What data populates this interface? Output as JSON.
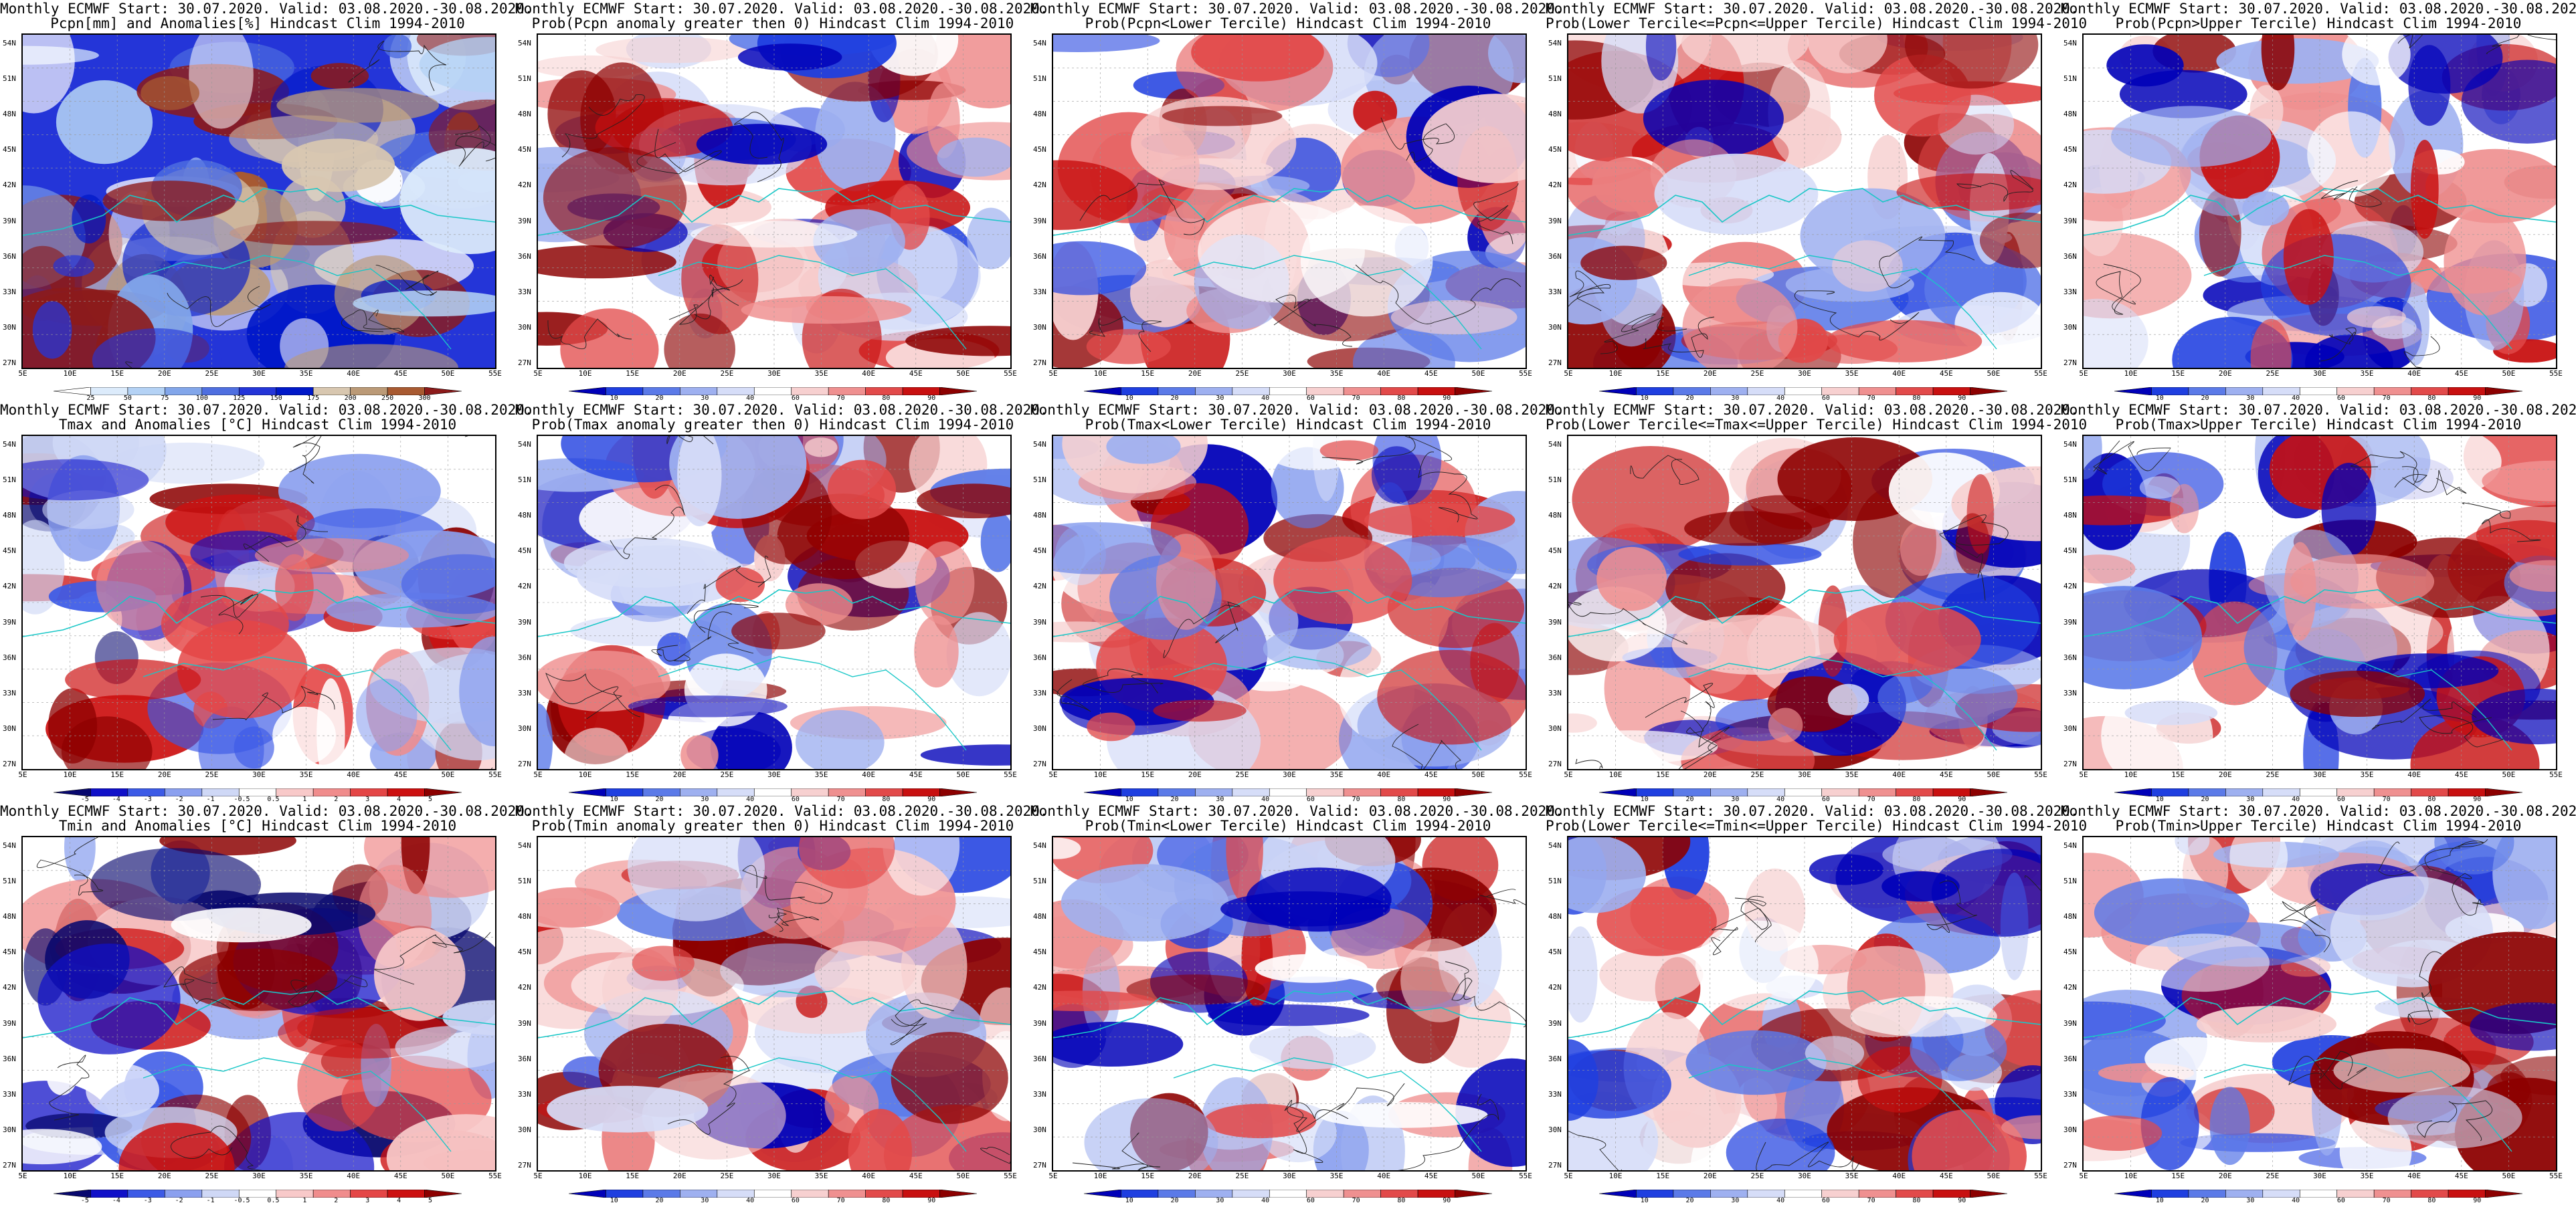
{
  "colors": {
    "pcpn_scale": [
      "#ffffff",
      "#dcebfb",
      "#b4d2f5",
      "#82a6ea",
      "#4f6fe0",
      "#2435d8",
      "#0018c8",
      "#d8c7b0",
      "#bb9a77",
      "#a85a31",
      "#8c1a1a"
    ],
    "anom_scale": [
      "#08086e",
      "#1010c8",
      "#3c5ae6",
      "#8ba0ef",
      "#cfd8f6",
      "#ffffff",
      "#f8c9c9",
      "#f08c8c",
      "#e44646",
      "#cc1010",
      "#8c0000"
    ],
    "prob_scale": [
      "#0000b8",
      "#1f3fe0",
      "#5b7ae8",
      "#9eb0f0",
      "#d6ddf8",
      "#ffffff",
      "#f7d0d0",
      "#ef9090",
      "#e24a4a",
      "#c81010",
      "#8c0000"
    ],
    "contour": "#202020",
    "coast": "#19c7c7"
  },
  "lat_labels": [
    "54N",
    "51N",
    "48N",
    "45N",
    "42N",
    "39N",
    "36N",
    "33N",
    "30N",
    "27N"
  ],
  "lon_labels": [
    "5E",
    "10E",
    "15E",
    "20E",
    "25E",
    "30E",
    "35E",
    "40E",
    "45E",
    "50E",
    "55E"
  ],
  "panels": [
    {
      "id": "r1c1",
      "title1": "Monthly ECMWF Start: 30.07.2020. Valid: 03.08.2020.-30.08.2020.",
      "title2": "Pcpn[mm] and Anomalies[%] Hindcast Clim 1994-2010",
      "palette": "pcpn_scale",
      "cbar_labels": [
        "25",
        "50",
        "75",
        "100",
        "125",
        "150",
        "175",
        "200",
        "250",
        "300"
      ]
    },
    {
      "id": "r1c2",
      "title1": "Monthly ECMWF Start: 30.07.2020. Valid: 03.08.2020.-30.08.2020.",
      "title2": "Prob(Pcpn anomaly greater then 0) Hindcast Clim 1994-2010",
      "palette": "prob_scale",
      "cbar_labels": [
        "10",
        "20",
        "30",
        "40",
        "60",
        "70",
        "80",
        "90"
      ]
    },
    {
      "id": "r1c3",
      "title1": "Monthly ECMWF Start: 30.07.2020. Valid: 03.08.2020.-30.08.2020.",
      "title2": "Prob(Pcpn<Lower Tercile) Hindcast Clim 1994-2010",
      "palette": "prob_scale",
      "cbar_labels": [
        "10",
        "20",
        "30",
        "40",
        "60",
        "70",
        "80",
        "90"
      ]
    },
    {
      "id": "r1c4",
      "title1": "Monthly ECMWF Start: 30.07.2020. Valid: 03.08.2020.-30.08.2020.",
      "title2": "Prob(Lower Tercile<=Pcpn<=Upper Tercile) Hindcast Clim 1994-2010",
      "palette": "prob_scale",
      "cbar_labels": [
        "10",
        "20",
        "30",
        "40",
        "60",
        "70",
        "80",
        "90"
      ]
    },
    {
      "id": "r1c5",
      "title1": "Monthly ECMWF Start: 30.07.2020. Valid: 03.08.2020.-30.08.2020.",
      "title2": "Prob(Pcpn>Upper Tercile) Hindcast Clim 1994-2010",
      "palette": "prob_scale",
      "cbar_labels": [
        "10",
        "20",
        "30",
        "40",
        "60",
        "70",
        "80",
        "90"
      ]
    },
    {
      "id": "r2c1",
      "title1": "Monthly ECMWF Start: 30.07.2020. Valid: 03.08.2020.-30.08.2020.",
      "title2": "Tmax and Anomalies [°C] Hindcast Clim 1994-2010",
      "palette": "anom_scale",
      "cbar_labels": [
        "-5",
        "-4",
        "-3",
        "-2",
        "-1",
        "-0.5",
        "0.5",
        "1",
        "2",
        "3",
        "4",
        "5"
      ]
    },
    {
      "id": "r2c2",
      "title1": "Monthly ECMWF Start: 30.07.2020. Valid: 03.08.2020.-30.08.2020.",
      "title2": "Prob(Tmax anomaly greater then 0) Hindcast Clim 1994-2010",
      "palette": "prob_scale",
      "cbar_labels": [
        "10",
        "20",
        "30",
        "40",
        "60",
        "70",
        "80",
        "90"
      ]
    },
    {
      "id": "r2c3",
      "title1": "Monthly ECMWF Start: 30.07.2020. Valid: 03.08.2020.-30.08.2020.",
      "title2": "Prob(Tmax<Lower Tercile) Hindcast Clim 1994-2010",
      "palette": "prob_scale",
      "cbar_labels": [
        "10",
        "20",
        "30",
        "40",
        "60",
        "70",
        "80",
        "90"
      ]
    },
    {
      "id": "r2c4",
      "title1": "Monthly ECMWF Start: 30.07.2020. Valid: 03.08.2020.-30.08.2020.",
      "title2": "Prob(Lower Tercile<=Tmax<=Upper Tercile) Hindcast Clim 1994-2010",
      "palette": "prob_scale",
      "cbar_labels": [
        "10",
        "20",
        "30",
        "40",
        "60",
        "70",
        "80",
        "90"
      ]
    },
    {
      "id": "r2c5",
      "title1": "Monthly ECMWF Start: 30.07.2020. Valid: 03.08.2020.-30.08.2020.",
      "title2": "Prob(Tmax>Upper Tercile) Hindcast Clim 1994-2010",
      "palette": "prob_scale",
      "cbar_labels": [
        "10",
        "20",
        "30",
        "40",
        "60",
        "70",
        "80",
        "90"
      ]
    },
    {
      "id": "r3c1",
      "title1": "Monthly ECMWF Start: 30.07.2020. Valid: 03.08.2020.-30.08.2020.",
      "title2": "Tmin and Anomalies [°C] Hindcast Clim 1994-2010",
      "palette": "anom_scale",
      "cbar_labels": [
        "-5",
        "-4",
        "-3",
        "-2",
        "-1",
        "-0.5",
        "0.5",
        "1",
        "2",
        "3",
        "4",
        "5"
      ]
    },
    {
      "id": "r3c2",
      "title1": "Monthly ECMWF Start: 30.07.2020. Valid: 03.08.2020.-30.08.2020.",
      "title2": "Prob(Tmin anomaly greater then 0) Hindcast Clim 1994-2010",
      "palette": "prob_scale",
      "cbar_labels": [
        "10",
        "20",
        "30",
        "40",
        "60",
        "70",
        "80",
        "90"
      ]
    },
    {
      "id": "r3c3",
      "title1": "Monthly ECMWF Start: 30.07.2020. Valid: 03.08.2020.-30.08.2020.",
      "title2": "Prob(Tmin<Lower Tercile) Hindcast Clim 1994-2010",
      "palette": "prob_scale",
      "cbar_labels": [
        "10",
        "20",
        "30",
        "40",
        "60",
        "70",
        "80",
        "90"
      ]
    },
    {
      "id": "r3c4",
      "title1": "Monthly ECMWF Start: 30.07.2020. Valid: 03.08.2020.-30.08.2020.",
      "title2": "Prob(Lower Tercile<=Tmin<=Upper Tercile) Hindcast Clim 1994-2010",
      "palette": "prob_scale",
      "cbar_labels": [
        "10",
        "20",
        "30",
        "40",
        "60",
        "70",
        "80",
        "90"
      ]
    },
    {
      "id": "r3c5",
      "title1": "Monthly ECMWF Start: 30.07.2020. Valid: 03.08.2020.-30.08.2020.",
      "title2": "Prob(Tmin>Upper Tercile) Hindcast Clim 1994-2010",
      "palette": "prob_scale",
      "cbar_labels": [
        "10",
        "20",
        "30",
        "40",
        "60",
        "70",
        "80",
        "90"
      ]
    }
  ]
}
